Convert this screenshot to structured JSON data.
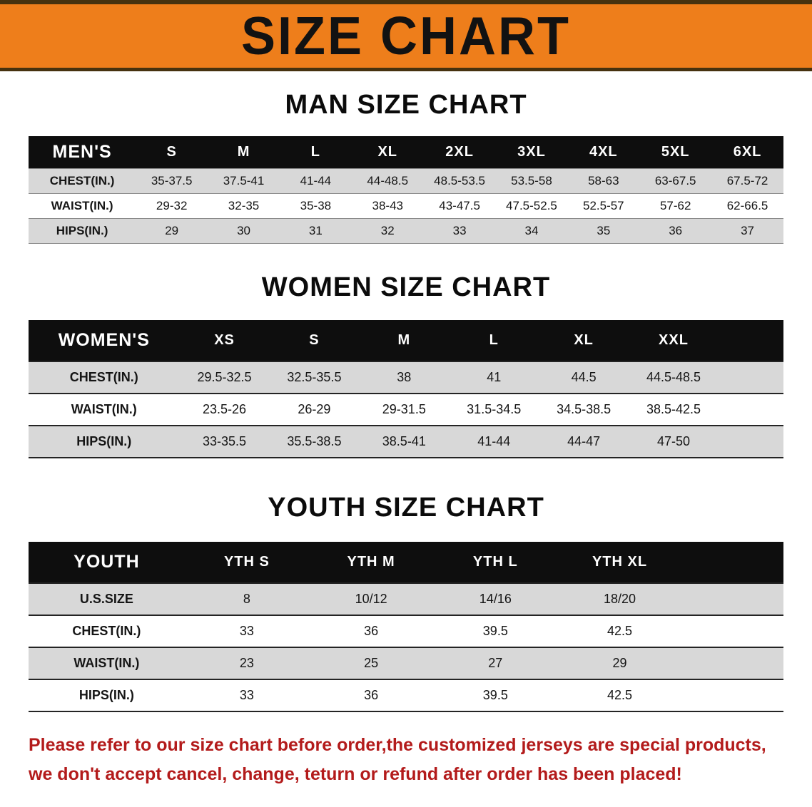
{
  "banner": {
    "title": "SIZE CHART",
    "bg_color": "#ee7e1b"
  },
  "colors": {
    "banner_orange": "#ee7e1b",
    "table_header_black": "#0e0e0e",
    "row_shade_gray": "#d8d8d8",
    "footer_red": "#b31b1b"
  },
  "men_chart": {
    "heading": "MAN SIZE CHART",
    "header": [
      "MEN'S",
      "S",
      "M",
      "L",
      "XL",
      "2XL",
      "3XL",
      "4XL",
      "5XL",
      "6XL"
    ],
    "rows": [
      [
        "CHEST(IN.)",
        "35-37.5",
        "37.5-41",
        "41-44",
        "44-48.5",
        "48.5-53.5",
        "53.5-58",
        "58-63",
        "63-67.5",
        "67.5-72"
      ],
      [
        "WAIST(IN.)",
        "29-32",
        "32-35",
        "35-38",
        "38-43",
        "43-47.5",
        "47.5-52.5",
        "52.5-57",
        "57-62",
        "62-66.5"
      ],
      [
        "HIPS(IN.)",
        "29",
        "30",
        "31",
        "32",
        "33",
        "34",
        "35",
        "36",
        "37"
      ]
    ]
  },
  "women_chart": {
    "heading": "WOMEN SIZE CHART",
    "header": [
      "WOMEN'S",
      "XS",
      "S",
      "M",
      "L",
      "XL",
      "XXL"
    ],
    "rows": [
      [
        "CHEST(IN.)",
        "29.5-32.5",
        "32.5-35.5",
        "38",
        "41",
        "44.5",
        "44.5-48.5"
      ],
      [
        "WAIST(IN.)",
        "23.5-26",
        "26-29",
        "29-31.5",
        "31.5-34.5",
        "34.5-38.5",
        "38.5-42.5"
      ],
      [
        "HIPS(IN.)",
        "33-35.5",
        "35.5-38.5",
        "38.5-41",
        "41-44",
        "44-47",
        "47-50"
      ]
    ]
  },
  "youth_chart": {
    "heading": "YOUTH SIZE CHART",
    "header": [
      "YOUTH",
      "YTH S",
      "YTH M",
      "YTH L",
      "YTH XL"
    ],
    "rows": [
      [
        "U.S.SIZE",
        "8",
        "10/12",
        "14/16",
        "18/20"
      ],
      [
        "CHEST(IN.)",
        "33",
        "36",
        "39.5",
        "42.5"
      ],
      [
        "WAIST(IN.)",
        "23",
        "25",
        "27",
        "29"
      ],
      [
        "HIPS(IN.)",
        "33",
        "36",
        "39.5",
        "42.5"
      ]
    ]
  },
  "footer": {
    "line1": "Please refer to our size chart before order,the customized jerseys are special products,",
    "line2": "we don't accept cancel, change, teturn or refund after order has been placed!"
  }
}
